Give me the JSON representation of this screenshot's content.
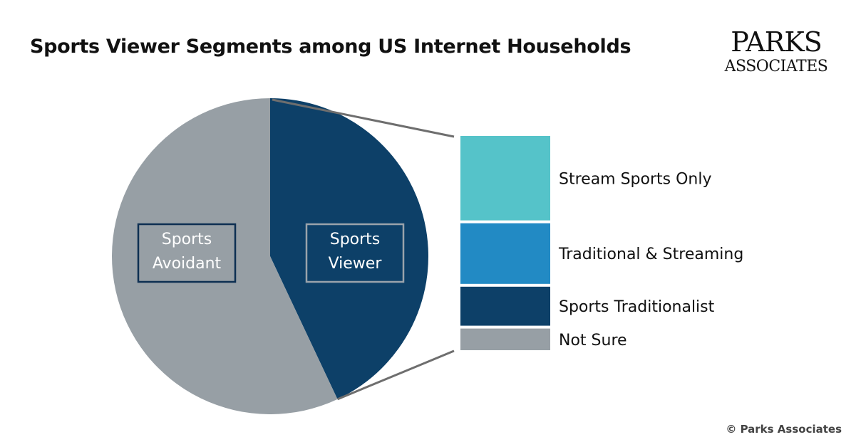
{
  "title": "Sports Viewer Segments among US Internet Households",
  "logo": {
    "line1": "PARKS",
    "line2": "ASSOCIATES"
  },
  "copyright": "© Parks Associates",
  "chart_data": [
    {
      "type": "pie",
      "categories": [
        "Sports Viewer",
        "Sports Avoidant"
      ],
      "values": [
        43,
        57
      ],
      "colors": [
        "#0d4068",
        "#979fa5"
      ],
      "start": "12 o'clock",
      "direction": "clockwise",
      "legend": "none"
    },
    {
      "type": "bar",
      "stacked": true,
      "note": "breakdown of Sports Viewer slice",
      "categories": [
        "Stream Sports Only",
        "Traditional & Streaming",
        "Sports Traditionalist",
        "Not Sure"
      ],
      "values": [
        39,
        28,
        18,
        10
      ],
      "colors": [
        "#55c3c9",
        "#228ac4",
        "#0d4068",
        "#979fa5"
      ]
    }
  ]
}
